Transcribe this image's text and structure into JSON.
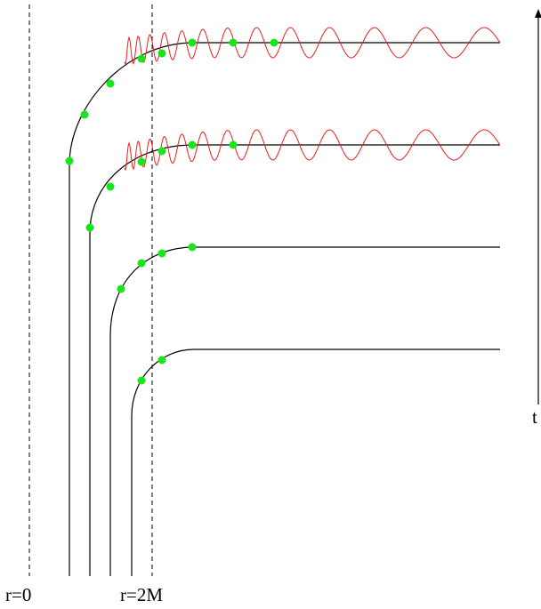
{
  "labels": {
    "r0": "r=0",
    "r2m": "r=2M",
    "time_axis": "t"
  },
  "colors": {
    "worldline": "#000000",
    "wave": "#e8201c",
    "marker": "#19e619"
  }
}
